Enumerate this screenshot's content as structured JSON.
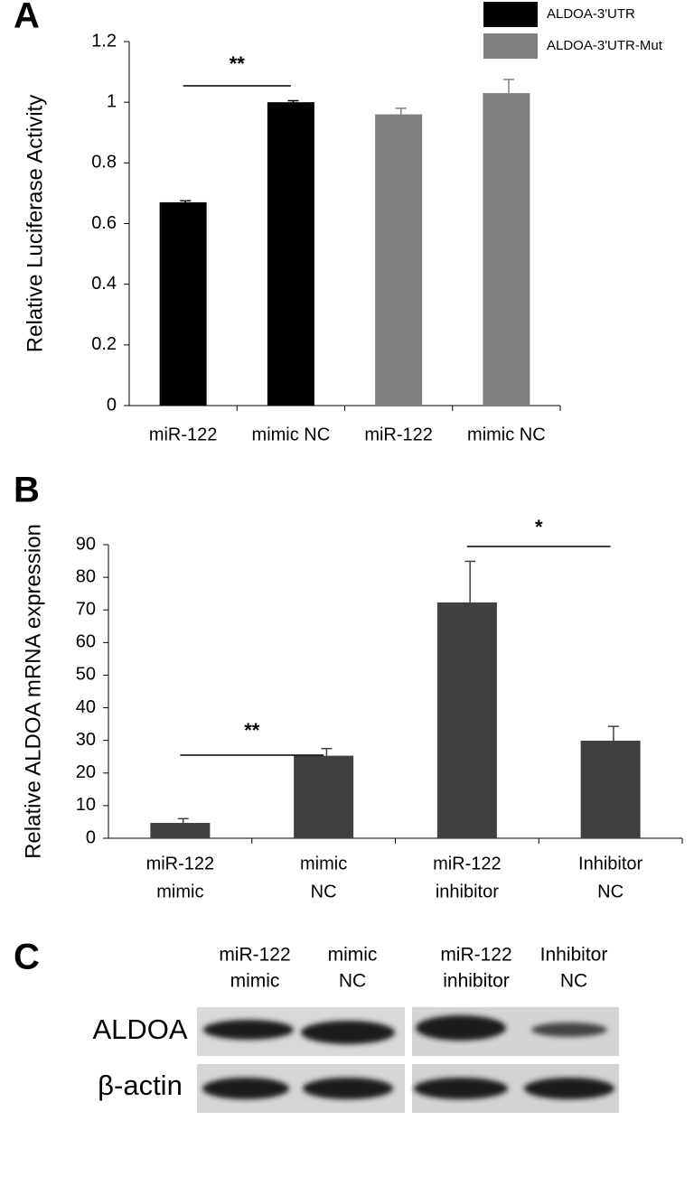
{
  "chart_data": [
    {
      "type": "bar",
      "label": "A",
      "y_label": "Relative Luciferase Activity",
      "categories": [
        "miR-122",
        "mimic NC",
        "miR-122",
        "mimic NC"
      ],
      "series": [
        {
          "name": "ALDOA-3'UTR",
          "color": "#000000",
          "values": [
            0.67,
            1.0,
            null,
            null
          ],
          "errors": [
            0.005,
            0.005,
            null,
            null
          ]
        },
        {
          "name": "ALDOA-3'UTR-Mut",
          "color": "#7f7f7f",
          "values": [
            null,
            null,
            0.96,
            1.03
          ],
          "errors": [
            null,
            null,
            0.02,
            0.045
          ]
        }
      ],
      "ylim": [
        0,
        1.2
      ],
      "yticks": [
        0,
        0.2,
        0.4,
        0.6,
        0.8,
        1,
        1.2
      ],
      "grid": false,
      "legend": "upper right",
      "annotations": [
        "**"
      ]
    },
    {
      "type": "bar",
      "label": "B",
      "y_label": "Relative ALDOA mRNA expression",
      "categories": [
        [
          "miR-122",
          "mimic"
        ],
        [
          "mimic",
          "NC"
        ],
        [
          "miR-122",
          "inhibitor"
        ],
        [
          "Inhibitor",
          "NC"
        ]
      ],
      "series": [
        {
          "name": null,
          "color": "#404040",
          "values": [
            4.7,
            25.3,
            72.3,
            29.9
          ],
          "errors": [
            1.3,
            2.2,
            12.6,
            4.4
          ]
        }
      ],
      "ylim": [
        0,
        90
      ],
      "yticks": [
        0,
        10,
        20,
        30,
        40,
        50,
        60,
        70,
        80,
        90
      ],
      "grid": false,
      "legend": null,
      "annotations": [
        "**",
        "*"
      ]
    }
  ],
  "blot": {
    "label": "C",
    "lanes": [
      [
        "miR-122",
        "mimic"
      ],
      [
        "mimic",
        "NC"
      ],
      [
        "miR-122",
        "inhibitor"
      ],
      [
        "Inhibitor",
        "NC"
      ]
    ],
    "rows": [
      "ALDOA",
      "β-actin"
    ]
  }
}
